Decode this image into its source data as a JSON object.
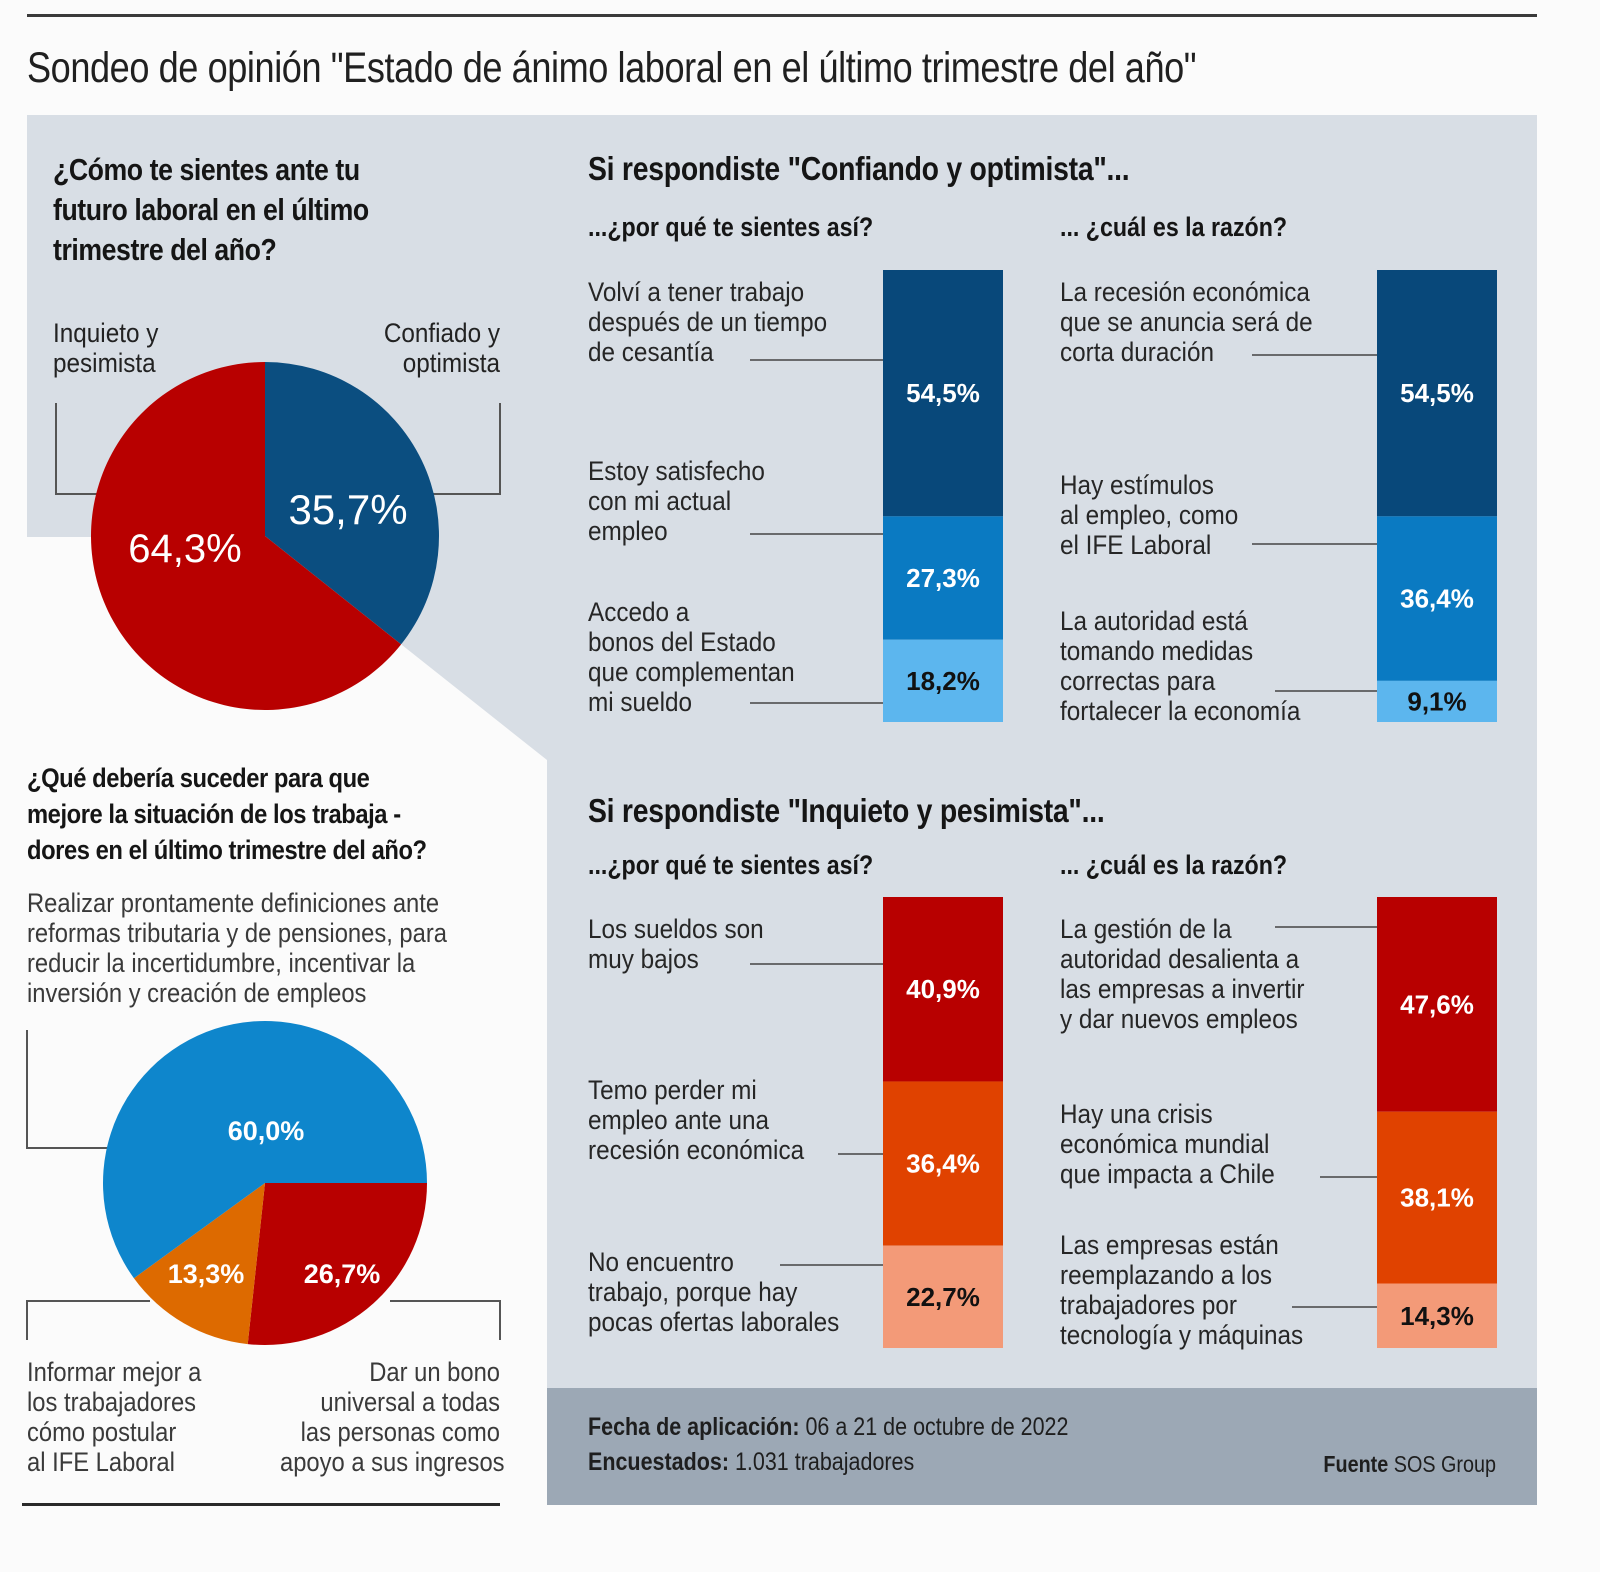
{
  "title": "Sondeo de opinión \"Estado de ánimo laboral en el último trimestre del año\"",
  "colors": {
    "panel_gray": "#d8dee5",
    "footer_gray": "#9ca8b5",
    "blue_dark": "#08487a",
    "blue_mid": "#0a7ac2",
    "blue_light": "#5cb6ee",
    "red_dark": "#b80000",
    "orange": "#e04200",
    "salmon": "#f39a78",
    "pie_blue": "#0e86cc",
    "pie_orange": "#dd6a00"
  },
  "chart_data": [
    {
      "type": "pie",
      "title": "¿Cómo te sientes ante tu futuro laboral en el último trimestre del año?",
      "categories": [
        "Confiado y optimista",
        "Inquieto y pesimista"
      ],
      "values": [
        35.7,
        64.3
      ],
      "value_labels": [
        "35,7%",
        "64,3%"
      ],
      "colors": [
        "#0b4e80",
        "#b80000"
      ],
      "legend": "labels above slices"
    },
    {
      "type": "bar",
      "stacked": true,
      "group": "Si respondiste \"Confiando y optimista\"...",
      "title": "...¿por qué te sientes así?",
      "categories": [
        "Volví a tener trabajo después de un tiempo de cesantía",
        "Estoy satisfecho con mi actual empleo",
        "Accedo a bonos del Estado que complementan mi sueldo"
      ],
      "values": [
        54.5,
        27.3,
        18.2
      ],
      "value_labels": [
        "54,5%",
        "27,3%",
        "18,2%"
      ],
      "colors": [
        "#08487a",
        "#0a7ac2",
        "#5cb6ee"
      ],
      "label_colors": [
        "#ffffff",
        "#ffffff",
        "#111111"
      ],
      "ylim": [
        0,
        100
      ]
    },
    {
      "type": "bar",
      "stacked": true,
      "group": "Si respondiste \"Confiando y optimista\"...",
      "title": "... ¿cuál es la razón?",
      "categories": [
        "La recesión económica que se anuncia será de corta duración",
        "Hay estímulos al empleo, como el IFE Laboral",
        "La autoridad está tomando medidas correctas para fortalecer la economía"
      ],
      "values": [
        54.5,
        36.4,
        9.1
      ],
      "value_labels": [
        "54,5%",
        "36,4%",
        "9,1%"
      ],
      "colors": [
        "#08487a",
        "#0a7ac2",
        "#5cb6ee"
      ],
      "label_colors": [
        "#ffffff",
        "#ffffff",
        "#111111"
      ],
      "ylim": [
        0,
        100
      ]
    },
    {
      "type": "bar",
      "stacked": true,
      "group": "Si respondiste \"Inquieto y pesimista\"...",
      "title": "...¿por qué te sientes así?",
      "categories": [
        "Los sueldos son muy bajos",
        "Temo perder mi empleo ante una recesión económica",
        "No encuentro trabajo, porque hay pocas ofertas laborales"
      ],
      "values": [
        40.9,
        36.4,
        22.7
      ],
      "value_labels": [
        "40,9%",
        "36,4%",
        "22,7%"
      ],
      "colors": [
        "#b80000",
        "#e04200",
        "#f39a78"
      ],
      "label_colors": [
        "#ffffff",
        "#ffffff",
        "#111111"
      ],
      "ylim": [
        0,
        100
      ]
    },
    {
      "type": "bar",
      "stacked": true,
      "group": "Si respondiste \"Inquieto y pesimista\"...",
      "title": "... ¿cuál es la razón?",
      "categories": [
        "La gestión de la autoridad desalienta a las empresas a invertir y dar nuevos empleos",
        "Hay una crisis económica mundial que impacta a Chile",
        "Las empresas están reemplazando a los trabajadores por tecnología y máquinas"
      ],
      "values": [
        47.6,
        38.1,
        14.3
      ],
      "value_labels": [
        "47,6%",
        "38,1%",
        "14,3%"
      ],
      "colors": [
        "#b80000",
        "#e04200",
        "#f39a78"
      ],
      "label_colors": [
        "#ffffff",
        "#ffffff",
        "#111111"
      ],
      "ylim": [
        0,
        100
      ]
    },
    {
      "type": "pie",
      "title": "¿Qué debería suceder para que mejore la situación de los trabaja-dores en el último trimestre del año?",
      "categories": [
        "Realizar prontamente definiciones ante reformas tributaria y de pensiones, para reducir la incertidumbre, incentivar la inversión y creación de empleos",
        "Dar un bono universal a todas las personas como apoyo a sus ingresos",
        "Informar mejor a los trabajadores cómo postular al IFE Laboral"
      ],
      "values": [
        60.0,
        26.7,
        13.3
      ],
      "value_labels": [
        "60,0%",
        "26,7%",
        "13,3%"
      ],
      "colors": [
        "#0e86cc",
        "#b80000",
        "#dd6a00"
      ]
    }
  ],
  "pie1": {
    "question_lines": [
      "¿Cómo te sientes ante tu",
      "futuro laboral en el último",
      "trimestre del año?"
    ],
    "label_inquieto_lines": [
      "Inquieto y",
      "pesimista"
    ],
    "label_confiado_lines": [
      "Confiado y",
      "optimista"
    ],
    "val_confiado": "35,7%",
    "val_inquieto": "64,3%"
  },
  "sections": {
    "optimist_title": "Si respondiste \"Confiando y optimista\"...",
    "pessimist_title": "Si respondiste \"Inquieto y pesimista\"...",
    "why": "...¿por qué te sientes así?",
    "reason": "... ¿cuál es la razón?"
  },
  "bars": {
    "opt_why": {
      "labels": [
        [
          "Volví a tener trabajo",
          "después de un tiempo",
          "de cesantía"
        ],
        [
          "Estoy satisfecho",
          "con mi actual",
          "empleo"
        ],
        [
          "Accedo a",
          "bonos del Estado",
          "que complementan",
          "mi sueldo"
        ]
      ]
    },
    "opt_reason": {
      "labels": [
        [
          "La recesión económica",
          "que se anuncia será de",
          "corta duración"
        ],
        [
          "Hay estímulos",
          "al empleo, como",
          "el IFE Laboral"
        ],
        [
          "La autoridad está",
          "tomando medidas",
          "correctas para",
          "fortalecer la economía"
        ]
      ]
    },
    "pes_why": {
      "labels": [
        [
          "Los sueldos son",
          "muy bajos"
        ],
        [
          "Temo perder mi",
          "empleo ante una",
          "recesión económica"
        ],
        [
          "No encuentro",
          "trabajo, porque hay",
          "pocas ofertas laborales"
        ]
      ]
    },
    "pes_reason": {
      "labels": [
        [
          "La gestión de la",
          "autoridad desalienta a",
          "las empresas a invertir",
          "y dar nuevos empleos"
        ],
        [
          "Hay una crisis",
          "económica mundial",
          "que impacta a Chile"
        ],
        [
          "Las empresas están",
          "reemplazando a los",
          "trabajadores por",
          "tecnología y máquinas"
        ]
      ]
    }
  },
  "pie2": {
    "question_lines": [
      "¿Qué debería suceder para que",
      "mejore la situación de los trabaja -",
      "dores en el último trimestre del año?"
    ],
    "option_main_lines": [
      "Realizar prontamente definiciones ante",
      "reformas tributaria y de pensiones, para",
      "reducir la incertidumbre, incentivar la",
      "inversión y creación de empleos"
    ],
    "option_ife_lines": [
      "Informar mejor a",
      "los trabajadores",
      "cómo postular",
      "al IFE Laboral"
    ],
    "option_bono_lines": [
      "Dar un bono",
      "universal a todas",
      "las personas como",
      "apoyo a sus ingresos"
    ],
    "val_main": "60,0%",
    "val_ife": "13,3%",
    "val_bono": "26,7%"
  },
  "footer": {
    "fecha_label": "Fecha de aplicación:",
    "fecha_value": "06 a 21 de octubre de 2022",
    "encuestados_label": "Encuestados:",
    "encuestados_value": "1.031 trabajadores",
    "fuente_label": "Fuente",
    "fuente_value": "SOS Group"
  }
}
